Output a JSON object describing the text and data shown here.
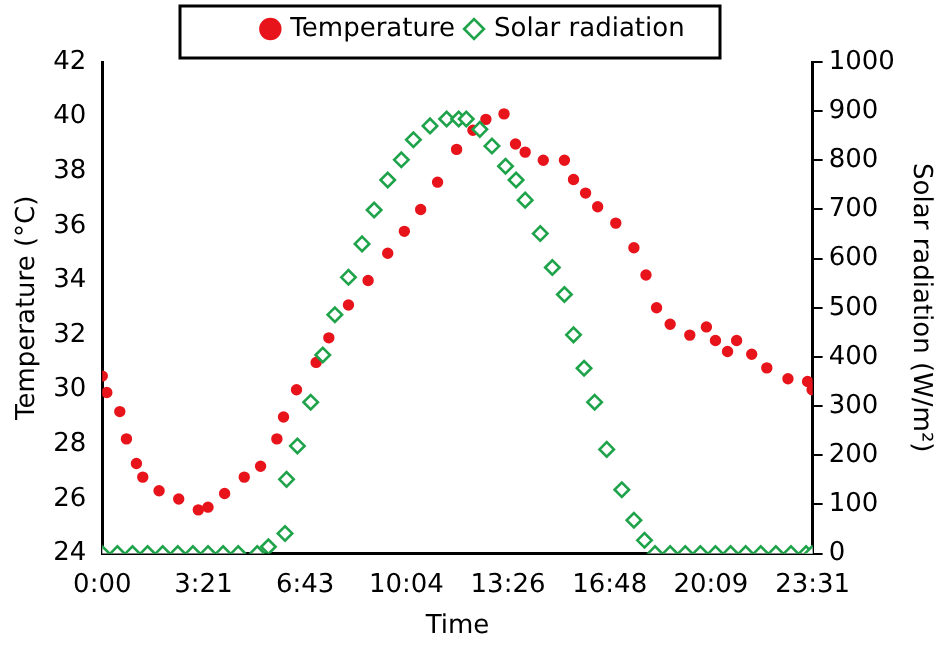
{
  "chart_data": {
    "type": "scatter",
    "xlabel": "Time",
    "ylabel": "Temperature (°C)",
    "y2label": "Solar radiation (W/m²)",
    "xlim": [
      0,
      23.517
    ],
    "xticks": [
      {
        "value": 0,
        "label": "0:00"
      },
      {
        "value": 3.35,
        "label": "3:21"
      },
      {
        "value": 6.717,
        "label": "6:43"
      },
      {
        "value": 10.067,
        "label": "10:04"
      },
      {
        "value": 13.433,
        "label": "13:26"
      },
      {
        "value": 16.8,
        "label": "16:48"
      },
      {
        "value": 20.15,
        "label": "20:09"
      },
      {
        "value": 23.517,
        "label": "23:31"
      }
    ],
    "ylim": [
      24,
      42
    ],
    "yticks": [
      24,
      26,
      28,
      30,
      32,
      34,
      36,
      38,
      40,
      42
    ],
    "y2lim": [
      0,
      1000
    ],
    "y2ticks": [
      0,
      100,
      200,
      300,
      400,
      500,
      600,
      700,
      800,
      900,
      1000
    ],
    "legend": "top",
    "grid": false,
    "series": [
      {
        "name": "Temperature",
        "color": "#e8141b",
        "marker": "circle",
        "x": [
          0,
          0.15,
          0.58,
          0.8,
          1.13,
          1.34,
          1.88,
          2.53,
          3.18,
          3.5,
          4.05,
          4.7,
          5.24,
          5.78,
          6.0,
          6.43,
          7.08,
          7.5,
          8.15,
          8.8,
          9.45,
          10.0,
          10.54,
          11.1,
          11.73,
          12.27,
          12.7,
          13.3,
          13.68,
          14.0,
          14.6,
          15.3,
          15.6,
          16.0,
          16.4,
          17.0,
          17.6,
          18.0,
          18.35,
          18.8,
          19.45,
          20.0,
          20.3,
          20.7,
          21.0,
          21.5,
          22.0,
          22.7,
          23.35,
          23.5
        ],
        "values": [
          30.5,
          29.9,
          29.2,
          28.2,
          27.3,
          26.8,
          26.3,
          26.0,
          25.6,
          25.7,
          26.2,
          26.8,
          27.2,
          28.2,
          29.0,
          30.0,
          31.0,
          31.9,
          33.1,
          34.0,
          35.0,
          35.8,
          36.6,
          37.6,
          38.8,
          39.5,
          39.9,
          40.1,
          39.0,
          38.7,
          38.4,
          38.4,
          37.7,
          37.2,
          36.7,
          36.1,
          35.2,
          34.2,
          33.0,
          32.4,
          32.0,
          32.3,
          31.8,
          31.4,
          31.8,
          31.3,
          30.8,
          30.4,
          30.3,
          30.0
        ]
      },
      {
        "name": "Solar radiation",
        "color": "#1ea34a",
        "marker": "diamond",
        "axis": "y2",
        "x": [
          0,
          0.5,
          1,
          1.5,
          2,
          2.5,
          3,
          3.5,
          4,
          4.5,
          5.13,
          5.5,
          6.05,
          6.1,
          6.46,
          6.9,
          7.3,
          7.7,
          8.15,
          8.6,
          9.0,
          9.45,
          9.9,
          10.3,
          10.85,
          11.4,
          11.8,
          12.05,
          12.5,
          12.9,
          13.35,
          13.7,
          14.0,
          14.5,
          14.9,
          15.3,
          15.6,
          15.95,
          16.3,
          16.7,
          17.2,
          17.6,
          17.95,
          18.3,
          18.8,
          19.3,
          19.8,
          20.3,
          20.8,
          21.3,
          21.8,
          22.3,
          22.8,
          23.3,
          23.5
        ],
        "values": [
          0,
          0,
          0,
          0,
          0,
          0,
          0,
          0,
          0,
          0,
          0,
          14,
          41,
          151,
          219,
          308,
          404,
          486,
          562,
          630,
          699,
          760,
          801,
          842,
          870,
          884,
          884,
          884,
          863,
          829,
          788,
          760,
          719,
          651,
          582,
          527,
          445,
          377,
          308,
          212,
          130,
          68,
          27,
          0,
          0,
          0,
          0,
          0,
          0,
          0,
          0,
          0,
          0,
          0,
          0
        ]
      }
    ]
  }
}
